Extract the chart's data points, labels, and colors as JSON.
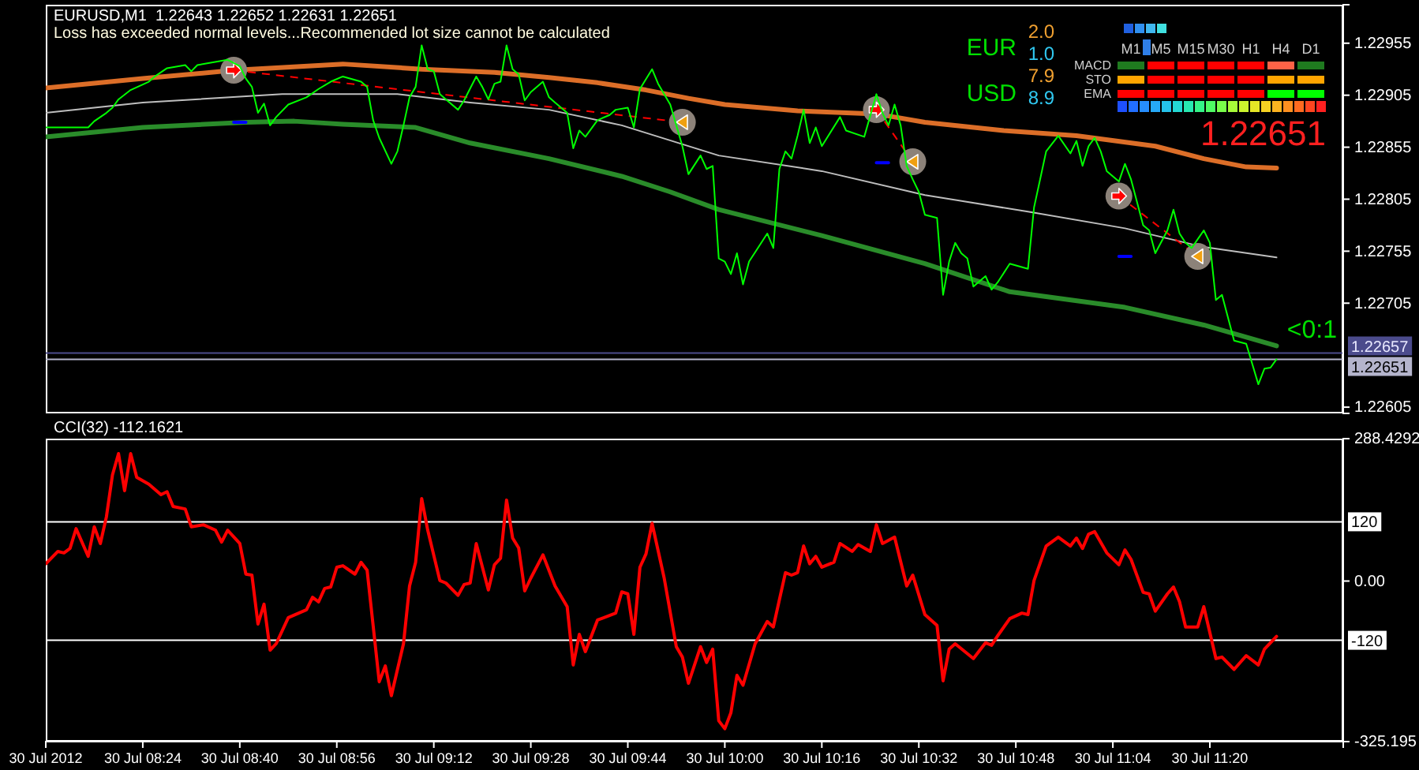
{
  "chart_data": [
    {
      "type": "line",
      "title": "EURUSD,M1  1.22643 1.22652 1.22631 1.22651",
      "subtitle": "Loss has exceeded normal levels...Recommended lot size cannot be calculated",
      "xlim": [
        "2012-07-30T08:08",
        "2012-07-30T11:42"
      ],
      "ylim": [
        1.22599,
        1.22992
      ],
      "yticks": [
        1.22605,
        1.22705,
        1.22755,
        1.22805,
        1.22855,
        1.22905,
        1.22955
      ],
      "tick_labels": "y",
      "ref_lines": [
        {
          "axis": "y",
          "value": 1.22657,
          "label": "1.22657",
          "color": "#4b4b8c"
        },
        {
          "axis": "y",
          "value": 1.22651,
          "label": "1.22651",
          "color": "#b4b4cc"
        }
      ],
      "annotations": [
        "<0:1"
      ],
      "series": [
        {
          "type": "line",
          "color": "#dc6e28",
          "x": [
            "2012-07-30T08:08",
            "2012-07-30T08:24",
            "2012-07-30T08:39",
            "2012-07-30T08:57",
            "2012-07-30T09:10",
            "2012-07-30T09:22",
            "2012-07-30T09:31",
            "2012-07-30T09:39",
            "2012-07-30T09:47",
            "2012-07-30T09:54",
            "2012-07-30T10:00",
            "2012-07-30T10:12",
            "2012-07-30T10:25",
            "2012-07-30T10:33",
            "2012-07-30T10:46",
            "2012-07-30T10:58",
            "2012-07-30T11:11",
            "2012-07-30T11:19",
            "2012-07-30T11:26",
            "2012-07-30T11:31"
          ],
          "values": [
            1.22912,
            1.22921,
            1.22929,
            1.22935,
            1.2293,
            1.22927,
            1.22922,
            1.22917,
            1.2291,
            1.22902,
            1.22896,
            1.2289,
            1.22887,
            1.22879,
            1.22871,
            1.22866,
            1.22856,
            1.22844,
            1.22836,
            1.22835
          ]
        },
        {
          "type": "line",
          "color": "#bebebe",
          "x": [
            "2012-07-30T08:08",
            "2012-07-30T08:24",
            "2012-07-30T08:47",
            "2012-07-30T09:06",
            "2012-07-30T09:18",
            "2012-07-30T09:31",
            "2012-07-30T09:43",
            "2012-07-30T09:59",
            "2012-07-30T10:16",
            "2012-07-30T10:33",
            "2012-07-30T10:50",
            "2012-07-30T11:06",
            "2012-07-30T11:19",
            "2012-07-30T11:31"
          ],
          "values": [
            1.22888,
            1.22898,
            1.22906,
            1.22906,
            1.22898,
            1.22891,
            1.22876,
            1.22847,
            1.22832,
            1.22809,
            1.22793,
            1.22777,
            1.22759,
            1.22749
          ]
        },
        {
          "type": "line",
          "color": "#2a8c2a",
          "x": [
            "2012-07-30T08:08",
            "2012-07-30T08:24",
            "2012-07-30T08:41",
            "2012-07-30T08:49",
            "2012-07-30T08:57",
            "2012-07-30T09:09",
            "2012-07-30T09:18",
            "2012-07-30T09:31",
            "2012-07-30T09:43",
            "2012-07-30T09:51",
            "2012-07-30T09:59",
            "2012-07-30T10:16",
            "2012-07-30T10:33",
            "2012-07-30T10:47",
            "2012-07-30T11:06",
            "2012-07-30T11:19",
            "2012-07-30T11:31"
          ],
          "values": [
            1.22865,
            1.22874,
            1.22879,
            1.2288,
            1.22877,
            1.22874,
            1.22859,
            1.22844,
            1.22827,
            1.22812,
            1.22795,
            1.2277,
            1.22743,
            1.22716,
            1.22701,
            1.22684,
            1.22664
          ]
        },
        {
          "type": "line",
          "color": "#ff0000",
          "line_style": "dashed",
          "marker": "circle",
          "x": [
            "2012-07-30T08:39",
            "2012-07-30T09:53",
            "2012-07-30T10:10",
            "2012-07-30T10:25",
            "2012-07-30T10:31",
            "2012-07-30T10:50",
            "2012-07-30T11:05",
            "2012-07-30T11:18"
          ],
          "values": [
            1.22929,
            1.22879,
            null,
            1.22891,
            1.22841,
            null,
            1.22808,
            1.2275
          ]
        },
        {
          "type": "line",
          "color": "#0000ff",
          "x": [
            "2012-07-30T08:39",
            "2012-07-30T08:41",
            "2012-07-30T09:00",
            "2012-07-30T10:25",
            "2012-07-30T10:27",
            "2012-07-30T10:45",
            "2012-07-30T11:05",
            "2012-07-30T11:07"
          ],
          "values": [
            1.22879,
            1.22879,
            null,
            1.2284,
            1.2284,
            null,
            1.2275,
            1.2275
          ]
        },
        {
          "type": "line",
          "color": "#00ff00",
          "x": [
            "2012-07-30T08:08",
            "2012-07-30T08:12",
            "2012-07-30T08:15",
            "2012-07-30T08:16",
            "2012-07-30T08:18",
            "2012-07-30T08:19",
            "2012-07-30T08:20",
            "2012-07-30T08:22",
            "2012-07-30T08:25",
            "2012-07-30T08:26",
            "2012-07-30T08:28",
            "2012-07-30T08:31",
            "2012-07-30T08:32",
            "2012-07-30T08:33",
            "2012-07-30T08:35",
            "2012-07-30T08:38",
            "2012-07-30T08:40",
            "2012-07-30T08:41",
            "2012-07-30T08:42",
            "2012-07-30T08:43",
            "2012-07-30T08:44",
            "2012-07-30T08:45",
            "2012-07-30T08:46",
            "2012-07-30T08:48",
            "2012-07-30T08:51",
            "2012-07-30T08:53",
            "2012-07-30T08:55",
            "2012-07-30T08:57",
            "2012-07-30T09:00",
            "2012-07-30T09:01",
            "2012-07-30T09:02",
            "2012-07-30T09:03",
            "2012-07-30T09:05",
            "2012-07-30T09:06",
            "2012-07-30T09:07",
            "2012-07-30T09:08",
            "2012-07-30T09:09",
            "2012-07-30T09:10",
            "2012-07-30T09:11",
            "2012-07-30T09:12",
            "2012-07-30T09:13",
            "2012-07-30T09:14",
            "2012-07-30T09:16",
            "2012-07-30T09:17",
            "2012-07-30T09:19",
            "2012-07-30T09:20",
            "2012-07-30T09:21",
            "2012-07-30T09:22",
            "2012-07-30T09:23",
            "2012-07-30T09:24",
            "2012-07-30T09:25",
            "2012-07-30T09:26",
            "2012-07-30T09:27",
            "2012-07-30T09:28",
            "2012-07-30T09:30",
            "2012-07-30T09:31",
            "2012-07-30T09:32",
            "2012-07-30T09:34",
            "2012-07-30T09:35",
            "2012-07-30T09:36",
            "2012-07-30T09:37",
            "2012-07-30T09:39",
            "2012-07-30T09:41",
            "2012-07-30T09:42",
            "2012-07-30T09:44",
            "2012-07-30T09:45",
            "2012-07-30T09:46",
            "2012-07-30T09:48",
            "2012-07-30T09:49",
            "2012-07-30T09:51",
            "2012-07-30T09:52",
            "2012-07-30T09:53",
            "2012-07-30T09:54",
            "2012-07-30T09:56",
            "2012-07-30T09:57",
            "2012-07-30T09:58",
            "2012-07-30T09:59",
            "2012-07-30T10:00",
            "2012-07-30T10:01",
            "2012-07-30T10:02",
            "2012-07-30T10:03",
            "2012-07-30T10:04",
            "2012-07-30T10:05",
            "2012-07-30T10:07",
            "2012-07-30T10:08",
            "2012-07-30T10:09",
            "2012-07-30T10:10",
            "2012-07-30T10:11",
            "2012-07-30T10:12",
            "2012-07-30T10:13",
            "2012-07-30T10:14",
            "2012-07-30T10:15",
            "2012-07-30T10:16",
            "2012-07-30T10:19",
            "2012-07-30T10:20",
            "2012-07-30T10:23",
            "2012-07-30T10:25",
            "2012-07-30T10:26",
            "2012-07-30T10:27",
            "2012-07-30T10:28",
            "2012-07-30T10:29",
            "2012-07-30T10:30",
            "2012-07-30T10:31",
            "2012-07-30T10:32",
            "2012-07-30T10:33",
            "2012-07-30T10:35",
            "2012-07-30T10:36",
            "2012-07-30T10:37",
            "2012-07-30T10:38",
            "2012-07-30T10:39",
            "2012-07-30T10:40",
            "2012-07-30T10:41",
            "2012-07-30T10:43",
            "2012-07-30T10:44",
            "2012-07-30T10:45",
            "2012-07-30T10:47",
            "2012-07-30T10:50",
            "2012-07-30T10:51",
            "2012-07-30T10:52",
            "2012-07-30T10:53",
            "2012-07-30T10:55",
            "2012-07-30T10:57",
            "2012-07-30T10:58",
            "2012-07-30T10:59",
            "2012-07-30T11:00",
            "2012-07-30T11:01",
            "2012-07-30T11:02",
            "2012-07-30T11:03",
            "2012-07-30T11:04",
            "2012-07-30T11:05",
            "2012-07-30T11:06",
            "2012-07-30T11:07",
            "2012-07-30T11:09",
            "2012-07-30T11:10",
            "2012-07-30T11:11",
            "2012-07-30T11:13",
            "2012-07-30T11:14",
            "2012-07-30T11:15",
            "2012-07-30T11:16",
            "2012-07-30T11:17",
            "2012-07-30T11:19",
            "2012-07-30T11:20",
            "2012-07-30T11:21",
            "2012-07-30T11:22",
            "2012-07-30T11:24",
            "2012-07-30T11:26",
            "2012-07-30T11:28",
            "2012-07-30T11:29",
            "2012-07-30T11:30",
            "2012-07-30T11:31"
          ],
          "values": [
            1.22874,
            1.22874,
            1.22874,
            1.2288,
            1.22888,
            1.22893,
            1.22901,
            1.2291,
            1.22918,
            1.22923,
            1.22931,
            1.22934,
            1.22928,
            1.22934,
            1.22936,
            1.22939,
            1.22933,
            1.22921,
            1.22913,
            1.22888,
            1.22897,
            1.22876,
            1.22884,
            1.22896,
            1.22903,
            1.22911,
            1.22918,
            1.22923,
            1.22918,
            1.22913,
            1.22881,
            1.22864,
            1.22839,
            1.22851,
            1.22876,
            1.22903,
            1.22913,
            1.22953,
            1.2293,
            1.22928,
            1.22906,
            1.22901,
            1.22891,
            1.229,
            1.22923,
            1.22913,
            1.22901,
            1.22916,
            1.22918,
            1.22953,
            1.2293,
            1.22925,
            1.229,
            1.22908,
            1.22918,
            1.22903,
            1.22898,
            1.22888,
            1.22854,
            1.22871,
            1.22865,
            1.22881,
            1.22886,
            1.22891,
            1.22893,
            1.22874,
            1.22911,
            1.2293,
            1.22916,
            1.22896,
            1.22876,
            1.22856,
            1.22829,
            1.22847,
            1.22834,
            1.22837,
            1.22748,
            1.22745,
            1.22733,
            1.22753,
            1.22723,
            1.22745,
            1.22754,
            1.22772,
            1.22758,
            1.22834,
            1.22851,
            1.22844,
            1.22866,
            1.22891,
            1.22859,
            1.22874,
            1.22856,
            1.22884,
            1.22871,
            1.22865,
            1.22906,
            1.22888,
            1.22876,
            1.22896,
            1.22876,
            1.22837,
            1.22824,
            1.22812,
            1.2279,
            1.22787,
            1.22713,
            1.22745,
            1.22763,
            1.22753,
            1.22748,
            1.22721,
            1.22731,
            1.22718,
            1.22725,
            1.22743,
            1.22738,
            1.22797,
            1.22824,
            1.22851,
            1.22866,
            1.22849,
            1.22861,
            1.22837,
            1.22856,
            1.22864,
            1.22851,
            1.22832,
            1.22827,
            1.22822,
            1.22839,
            1.22824,
            1.2278,
            1.22775,
            1.22753,
            1.22775,
            1.22795,
            1.22772,
            1.22763,
            1.22758,
            1.22775,
            1.22763,
            1.22708,
            1.22713,
            1.22669,
            1.22666,
            1.22627,
            1.22642,
            1.22643,
            1.22651
          ]
        }
      ]
    },
    {
      "type": "line",
      "title": "CCI(32) -112.1621",
      "xlim": [
        "2012-07-30T08:08",
        "2012-07-30T11:42"
      ],
      "xticks": [
        {
          "value": "2012-07-30T08:08",
          "label": "30 Jul 2012"
        },
        {
          "value": "2012-07-30T08:24",
          "label": "30 Jul 08:24"
        },
        {
          "value": "2012-07-30T08:40",
          "label": "30 Jul 08:40"
        },
        {
          "value": "2012-07-30T08:56",
          "label": "30 Jul 08:56"
        },
        {
          "value": "2012-07-30T09:12",
          "label": "30 Jul 09:12"
        },
        {
          "value": "2012-07-30T09:28",
          "label": "30 Jul 09:28"
        },
        {
          "value": "2012-07-30T09:44",
          "label": "30 Jul 09:44"
        },
        {
          "value": "2012-07-30T10:00",
          "label": "30 Jul 10:00"
        },
        {
          "value": "2012-07-30T10:16",
          "label": "30 Jul 10:16"
        },
        {
          "value": "2012-07-30T10:32",
          "label": "30 Jul 10:32"
        },
        {
          "value": "2012-07-30T10:48",
          "label": "30 Jul 10:48"
        },
        {
          "value": "2012-07-30T11:04",
          "label": "30 Jul 11:04"
        },
        {
          "value": "2012-07-30T11:20",
          "label": "30 Jul 11:20"
        }
      ],
      "ylim": [
        -325.195,
        288.4292
      ],
      "yticks": [
        -325.195,
        {
          "value": 0,
          "label": "0.00"
        },
        288.4292
      ],
      "ref_lines": [
        {
          "axis": "y",
          "value": 120,
          "label": "120",
          "color": "#ffffff"
        },
        {
          "axis": "y",
          "value": -120,
          "label": "-120",
          "color": "#ffffff"
        }
      ],
      "color": "#ff0000",
      "x": [
        "2012-07-30T08:08",
        "2012-07-30T08:10",
        "2012-07-30T08:11",
        "2012-07-30T08:12",
        "2012-07-30T08:13",
        "2012-07-30T08:15",
        "2012-07-30T08:16",
        "2012-07-30T08:17",
        "2012-07-30T08:18",
        "2012-07-30T08:19",
        "2012-07-30T08:20",
        "2012-07-30T08:21",
        "2012-07-30T08:22",
        "2012-07-30T08:23",
        "2012-07-30T08:25",
        "2012-07-30T08:27",
        "2012-07-30T08:28",
        "2012-07-30T08:29",
        "2012-07-30T08:31",
        "2012-07-30T08:32",
        "2012-07-30T08:34",
        "2012-07-30T08:36",
        "2012-07-30T08:37",
        "2012-07-30T08:38",
        "2012-07-30T08:40",
        "2012-07-30T08:41",
        "2012-07-30T08:42",
        "2012-07-30T08:43",
        "2012-07-30T08:44",
        "2012-07-30T08:45",
        "2012-07-30T08:46",
        "2012-07-30T08:48",
        "2012-07-30T08:51",
        "2012-07-30T08:52",
        "2012-07-30T08:53",
        "2012-07-30T08:54",
        "2012-07-30T08:55",
        "2012-07-30T08:56",
        "2012-07-30T08:57",
        "2012-07-30T08:59",
        "2012-07-30T09:00",
        "2012-07-30T09:01",
        "2012-07-30T09:03",
        "2012-07-30T09:04",
        "2012-07-30T09:05",
        "2012-07-30T09:07",
        "2012-07-30T09:08",
        "2012-07-30T09:09",
        "2012-07-30T09:10",
        "2012-07-30T09:11",
        "2012-07-30T09:13",
        "2012-07-30T09:14",
        "2012-07-30T09:16",
        "2012-07-30T09:17",
        "2012-07-30T09:18",
        "2012-07-30T09:19",
        "2012-07-30T09:21",
        "2012-07-30T09:22",
        "2012-07-30T09:23",
        "2012-07-30T09:24",
        "2012-07-30T09:25",
        "2012-07-30T09:26",
        "2012-07-30T09:27",
        "2012-07-30T09:28",
        "2012-07-30T09:30",
        "2012-07-30T09:32",
        "2012-07-30T09:34",
        "2012-07-30T09:35",
        "2012-07-30T09:36",
        "2012-07-30T09:37",
        "2012-07-30T09:39",
        "2012-07-30T09:42",
        "2012-07-30T09:43",
        "2012-07-30T09:44",
        "2012-07-30T09:45",
        "2012-07-30T09:46",
        "2012-07-30T09:47",
        "2012-07-30T09:48",
        "2012-07-30T09:50",
        "2012-07-30T09:52",
        "2012-07-30T09:53",
        "2012-07-30T09:54",
        "2012-07-30T09:56",
        "2012-07-30T09:57",
        "2012-07-30T09:58",
        "2012-07-30T09:59",
        "2012-07-30T10:00",
        "2012-07-30T10:01",
        "2012-07-30T10:02",
        "2012-07-30T10:03",
        "2012-07-30T10:05",
        "2012-07-30T10:07",
        "2012-07-30T10:08",
        "2012-07-30T10:10",
        "2012-07-30T10:11",
        "2012-07-30T10:12",
        "2012-07-30T10:13",
        "2012-07-30T10:14",
        "2012-07-30T10:15",
        "2012-07-30T10:16",
        "2012-07-30T10:18",
        "2012-07-30T10:19",
        "2012-07-30T10:21",
        "2012-07-30T10:22",
        "2012-07-30T10:24",
        "2012-07-30T10:25",
        "2012-07-30T10:26",
        "2012-07-30T10:28",
        "2012-07-30T10:30",
        "2012-07-30T10:31",
        "2012-07-30T10:33",
        "2012-07-30T10:35",
        "2012-07-30T10:36",
        "2012-07-30T10:37",
        "2012-07-30T10:38",
        "2012-07-30T10:40",
        "2012-07-30T10:41",
        "2012-07-30T10:43",
        "2012-07-30T10:44",
        "2012-07-30T10:45",
        "2012-07-30T10:47",
        "2012-07-30T10:49",
        "2012-07-30T10:50",
        "2012-07-30T10:51",
        "2012-07-30T10:53",
        "2012-07-30T10:55",
        "2012-07-30T10:57",
        "2012-07-30T10:58",
        "2012-07-30T10:59",
        "2012-07-30T11:00",
        "2012-07-30T11:01",
        "2012-07-30T11:03",
        "2012-07-30T11:05",
        "2012-07-30T11:06",
        "2012-07-30T11:07",
        "2012-07-30T11:09",
        "2012-07-30T11:10",
        "2012-07-30T11:11",
        "2012-07-30T11:13",
        "2012-07-30T11:14",
        "2012-07-30T11:15",
        "2012-07-30T11:16",
        "2012-07-30T11:18",
        "2012-07-30T11:19",
        "2012-07-30T11:21",
        "2012-07-30T11:22",
        "2012-07-30T11:24",
        "2012-07-30T11:26",
        "2012-07-30T11:28",
        "2012-07-30T11:29",
        "2012-07-30T11:31"
      ],
      "values": [
        35,
        60,
        57,
        66,
        106,
        50,
        110,
        76,
        130,
        215,
        258,
        183,
        258,
        210,
        196,
        175,
        181,
        151,
        146,
        110,
        114,
        103,
        79,
        103,
        76,
        14,
        12,
        -87,
        -47,
        -140,
        -127,
        -74,
        -58,
        -33,
        -42,
        -15,
        -12,
        28,
        31,
        14,
        38,
        22,
        -204,
        -172,
        -232,
        -127,
        -10,
        38,
        167,
        103,
        1,
        -4,
        -29,
        -7,
        -4,
        76,
        -18,
        33,
        46,
        164,
        87,
        67,
        -20,
        6,
        53,
        -10,
        -52,
        -170,
        -108,
        -143,
        -79,
        -65,
        -22,
        -26,
        -108,
        28,
        55,
        117,
        6,
        -133,
        -154,
        -207,
        -133,
        -165,
        -138,
        -283,
        -299,
        -267,
        -191,
        -211,
        -127,
        -82,
        -93,
        17,
        12,
        17,
        71,
        35,
        50,
        28,
        38,
        76,
        60,
        74,
        60,
        114,
        76,
        89,
        -10,
        12,
        -68,
        -90,
        -202,
        -138,
        -127,
        -147,
        -157,
        -125,
        -130,
        -111,
        -76,
        -65,
        -68,
        1,
        71,
        89,
        71,
        87,
        66,
        95,
        100,
        57,
        33,
        63,
        44,
        -23,
        -26,
        -61,
        -26,
        -12,
        -42,
        -93,
        -93,
        -52,
        -157,
        -154,
        -179,
        -151,
        -170,
        -138,
        -112.1621
      ]
    },
    {
      "type": "other",
      "annotations": [
        "2.0",
        "EUR",
        "1.0",
        "M1",
        "M5",
        "M15",
        "M30",
        "H1",
        "H4",
        "D1",
        "MACD",
        "STO",
        "7.9",
        "USD",
        "EMA",
        "8.9",
        "1.22651"
      ]
    }
  ]
}
